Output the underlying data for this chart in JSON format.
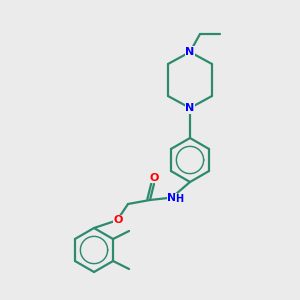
{
  "bg_color": "#ebebeb",
  "bond_color": "#2d8a6e",
  "nitrogen_color": "#0000ff",
  "oxygen_color": "#ff0000",
  "lw": 1.6,
  "figsize": [
    3.0,
    3.0
  ],
  "dpi": 100,
  "xlim": [
    0,
    300
  ],
  "ylim": [
    0,
    300
  ]
}
